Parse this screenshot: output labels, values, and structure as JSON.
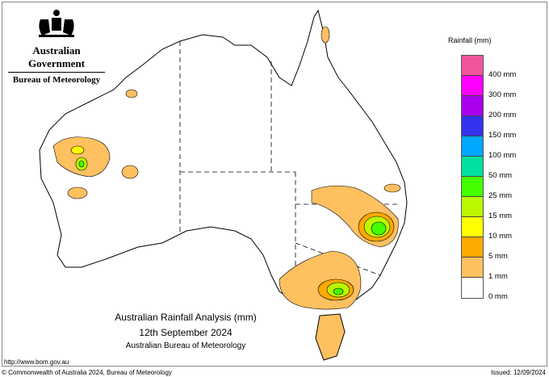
{
  "logo": {
    "line1": "Australian Government",
    "line2": "Bureau of Meteorology"
  },
  "legend": {
    "title": "Rainfall (mm)",
    "swatches": [
      "#f0559a",
      "#ff00ff",
      "#aa00ee",
      "#3333ee",
      "#00a8ff",
      "#00e0a0",
      "#44ff00",
      "#bbf800",
      "#ffff00",
      "#ffaa00",
      "#ffc060",
      "#ffffff"
    ],
    "labels": [
      "400 mm",
      "300 mm",
      "200 mm",
      "150 mm",
      "100 mm",
      "50 mm",
      "25 mm",
      "15 mm",
      "10 mm",
      "5 mm",
      "1 mm",
      "0 mm"
    ]
  },
  "title": {
    "line1": "Australian Rainfall Analysis (mm)",
    "line2": "12th September 2024",
    "line3": "Australian Bureau of Meteorology"
  },
  "footer": {
    "url": "http://www.bom.gov.au",
    "copyright": "© Commonwealth of Australia 2024, Bureau of Meteorology",
    "issued": "Issued: 12/09/2024"
  }
}
